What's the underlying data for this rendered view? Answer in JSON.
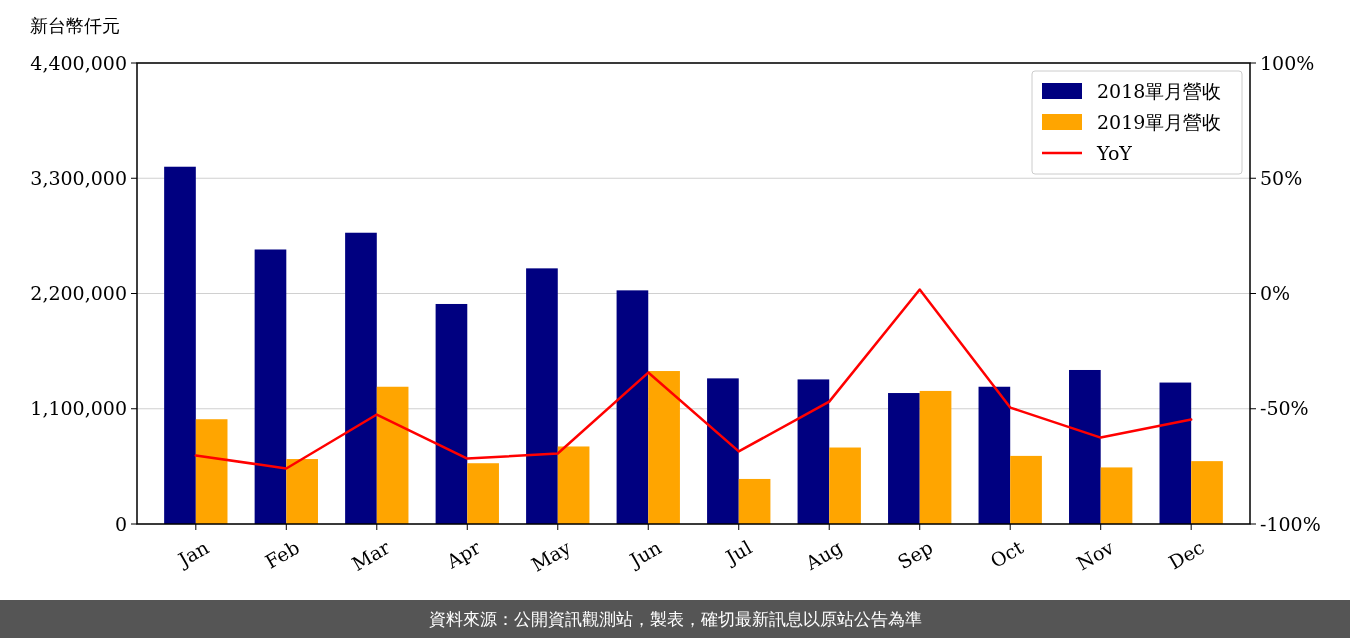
{
  "chart_data": {
    "type": "bar",
    "ylabel": "新台幣仟元",
    "categories": [
      "Jan",
      "Feb",
      "Mar",
      "Apr",
      "May",
      "Jun",
      "Jul",
      "Aug",
      "Sep",
      "Oct",
      "Nov",
      "Dec"
    ],
    "series": [
      {
        "name": "2018單月營收",
        "color": "#000080",
        "values": [
          3410000,
          2620000,
          2780000,
          2100000,
          2440000,
          2230000,
          1390000,
          1380000,
          1250000,
          1310000,
          1470000,
          1350000
        ]
      },
      {
        "name": "2019單月營收",
        "color": "#ffa500",
        "values": [
          1000000,
          620000,
          1310000,
          580000,
          740000,
          1460000,
          430000,
          730000,
          1270000,
          650000,
          540000,
          600000
        ]
      },
      {
        "name": "YoY",
        "type": "line",
        "axis": "y2",
        "color": "#ff0000",
        "values": [
          -70.3,
          -75.9,
          -52.5,
          -71.6,
          -69.4,
          -34.3,
          -68.5,
          -46.9,
          1.7,
          -49.5,
          -62.5,
          -54.7
        ]
      }
    ],
    "ylim": [
      0,
      4400000
    ],
    "yticks": [
      {
        "value": 0,
        "label": "0"
      },
      {
        "value": 1100000,
        "label": "1,100,000"
      },
      {
        "value": 2200000,
        "label": "2,200,000"
      },
      {
        "value": 3300000,
        "label": "3,300,000"
      },
      {
        "value": 4400000,
        "label": "4,400,000"
      }
    ],
    "y2lim": [
      -100,
      100
    ],
    "y2ticks": [
      {
        "value": -100,
        "label": "-100%"
      },
      {
        "value": -50,
        "label": "-50%"
      },
      {
        "value": 0,
        "label": "0%"
      },
      {
        "value": 50,
        "label": "50%"
      },
      {
        "value": 100,
        "label": "100%"
      }
    ],
    "grid": "y",
    "legend": "top right",
    "annotations": [
      "資料來源：公開資訊觀測站，製表，確切最新訊息以原站公告為準"
    ]
  }
}
